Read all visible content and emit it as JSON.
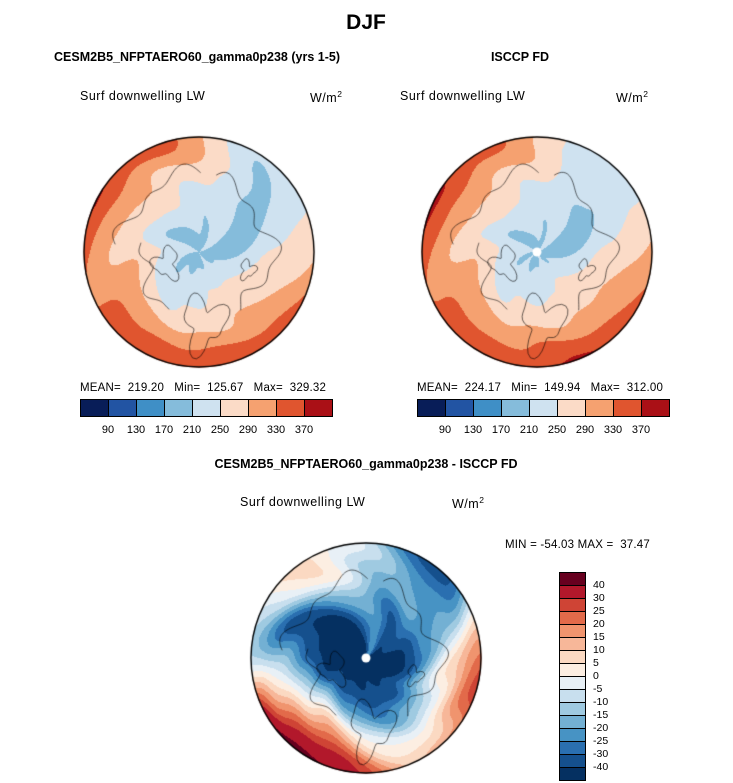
{
  "title": "DJF",
  "panels": {
    "model": {
      "title": "CESM2B5_NFPTAERO60_gamma0p238 (yrs 1-5)",
      "field_label": "Surf downwelling LW",
      "units_base": "W/m",
      "units_exp": "2",
      "stats_line": "MEAN=  219.20   Min=  125.67   Max=  329.32"
    },
    "obs": {
      "title": "ISCCP FD",
      "field_label": "Surf downwelling LW",
      "units_base": "W/m",
      "units_exp": "2",
      "stats_line": "MEAN=  224.17   Min=  149.94   Max=  312.00"
    },
    "diff": {
      "title": "CESM2B5_NFPTAERO60_gamma0p238 - ISCCP FD",
      "field_label": "Surf downwelling LW",
      "units_base": "W/m",
      "units_exp": "2",
      "minmax_line": "MIN = -54.03 MAX =  37.47"
    }
  },
  "chart_data": [
    {
      "type": "heatmap",
      "subtype": "north-polar-stereographic-filled-contour-map",
      "season": "DJF",
      "title": "CESM2B5_NFPTAERO60_gamma0p238 (yrs 1-5)",
      "variable": "Surf downwelling LW",
      "units": "W/m2",
      "stats": {
        "mean": 219.2,
        "min": 125.67,
        "max": 329.32
      },
      "colorbar": {
        "orientation": "horizontal",
        "levels": [
          90,
          130,
          170,
          210,
          250,
          290,
          330,
          370
        ],
        "colors": [
          "#081d58",
          "#2254a3",
          "#3f8fc6",
          "#85bcdb",
          "#cfe2f0",
          "#fbdbc7",
          "#f5a170",
          "#e0552f",
          "#aa1016"
        ]
      }
    },
    {
      "type": "heatmap",
      "subtype": "north-polar-stereographic-filled-contour-map",
      "season": "DJF",
      "title": "ISCCP FD",
      "variable": "Surf downwelling LW",
      "units": "W/m2",
      "stats": {
        "mean": 224.17,
        "min": 149.94,
        "max": 312.0
      },
      "colorbar": {
        "orientation": "horizontal",
        "levels": [
          90,
          130,
          170,
          210,
          250,
          290,
          330,
          370
        ],
        "colors": [
          "#081d58",
          "#2254a3",
          "#3f8fc6",
          "#85bcdb",
          "#cfe2f0",
          "#fbdbc7",
          "#f5a170",
          "#e0552f",
          "#aa1016"
        ]
      }
    },
    {
      "type": "heatmap",
      "subtype": "north-polar-stereographic-filled-contour-difference-map",
      "season": "DJF",
      "title": "CESM2B5_NFPTAERO60_gamma0p238 - ISCCP FD",
      "variable": "Surf downwelling LW",
      "units": "W/m2",
      "stats": {
        "min": -54.03,
        "max": 37.47
      },
      "colorbar": {
        "orientation": "vertical",
        "legend_position": "right",
        "levels": [
          -40,
          -30,
          -25,
          -20,
          -15,
          -10,
          -5,
          0,
          5,
          10,
          15,
          20,
          25,
          30,
          40
        ],
        "colors": [
          "#053061",
          "#15508d",
          "#2a6fb0",
          "#4793c4",
          "#73b0d3",
          "#9fcae1",
          "#c8dfee",
          "#e8f0f6",
          "#fceee2",
          "#fbd9c2",
          "#f7b799",
          "#f0946e",
          "#e26a4a",
          "#cf4435",
          "#b2182b",
          "#67001f"
        ]
      }
    }
  ]
}
